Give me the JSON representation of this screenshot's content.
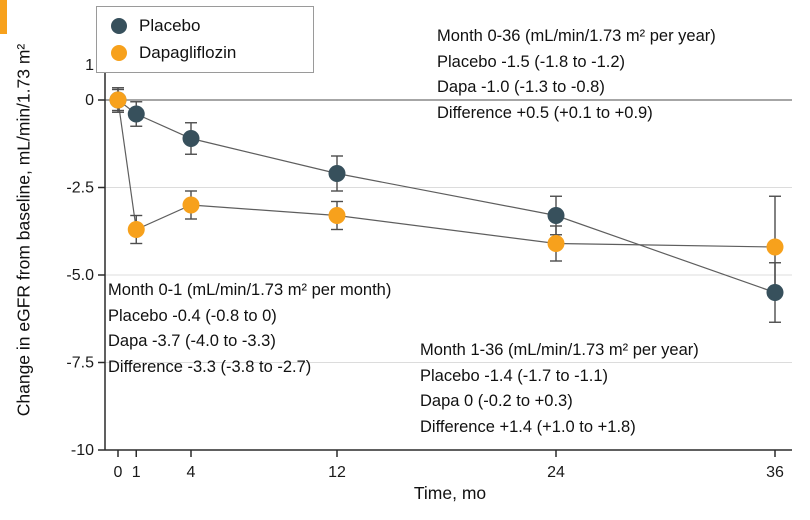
{
  "figure": {
    "accent_color": "#F7A11C",
    "background": "#FFFFFF"
  },
  "chart_data": {
    "type": "line",
    "title": "",
    "xlabel": "Time, mo",
    "ylabel": "Change in eGFR from baseline, mL/min/1.73 m²",
    "x": [
      0,
      1,
      4,
      12,
      24,
      36
    ],
    "xlim": [
      0,
      36
    ],
    "xticks": [
      0,
      1,
      4,
      12,
      24,
      36
    ],
    "ylim": [
      -10,
      1
    ],
    "yticks": [
      1,
      0,
      -2.5,
      -5.0,
      -7.5,
      -10
    ],
    "ytick_labels": [
      "1",
      "0",
      "-2.5",
      "-5.0",
      "-7.5",
      "-10"
    ],
    "gridlines_y": [
      -2.5,
      -5.0,
      -7.5
    ],
    "zero_line_y": 0,
    "grid": true,
    "legend_position": "top-left",
    "series": [
      {
        "name": "Placebo",
        "color": "#37505C",
        "values": [
          0,
          -0.4,
          -1.1,
          -2.1,
          -3.3,
          -5.5
        ],
        "error": [
          0.3,
          0.35,
          0.45,
          0.5,
          0.55,
          0.85
        ]
      },
      {
        "name": "Dapagliflozin",
        "color": "#F7A11C",
        "values": [
          0,
          -3.7,
          -3.0,
          -3.3,
          -4.1,
          -4.2
        ],
        "error": [
          0.35,
          0.4,
          0.4,
          0.4,
          0.5,
          1.45
        ]
      }
    ],
    "annotations": [
      {
        "lines": [
          "Month 0-36 (mL/min/1.73 m² per year)",
          "Placebo -1.5 (-1.8 to -1.2)",
          "Dapa -1.0 (-1.3 to -0.8)",
          "Difference +0.5 (+0.1 to +0.9)"
        ]
      },
      {
        "lines": [
          "Month 0-1 (mL/min/1.73 m² per month)",
          "Placebo -0.4 (-0.8 to 0)",
          "Dapa -3.7 (-4.0 to -3.3)",
          "Difference -3.3 (-3.8 to -2.7)"
        ]
      },
      {
        "lines": [
          "Month 1-36 (mL/min/1.73 m² per year)",
          "Placebo -1.4 (-1.7 to -1.1)",
          "Dapa 0 (-0.2 to +0.3)",
          "Difference +1.4 (+1.0 to +1.8)"
        ]
      }
    ]
  }
}
